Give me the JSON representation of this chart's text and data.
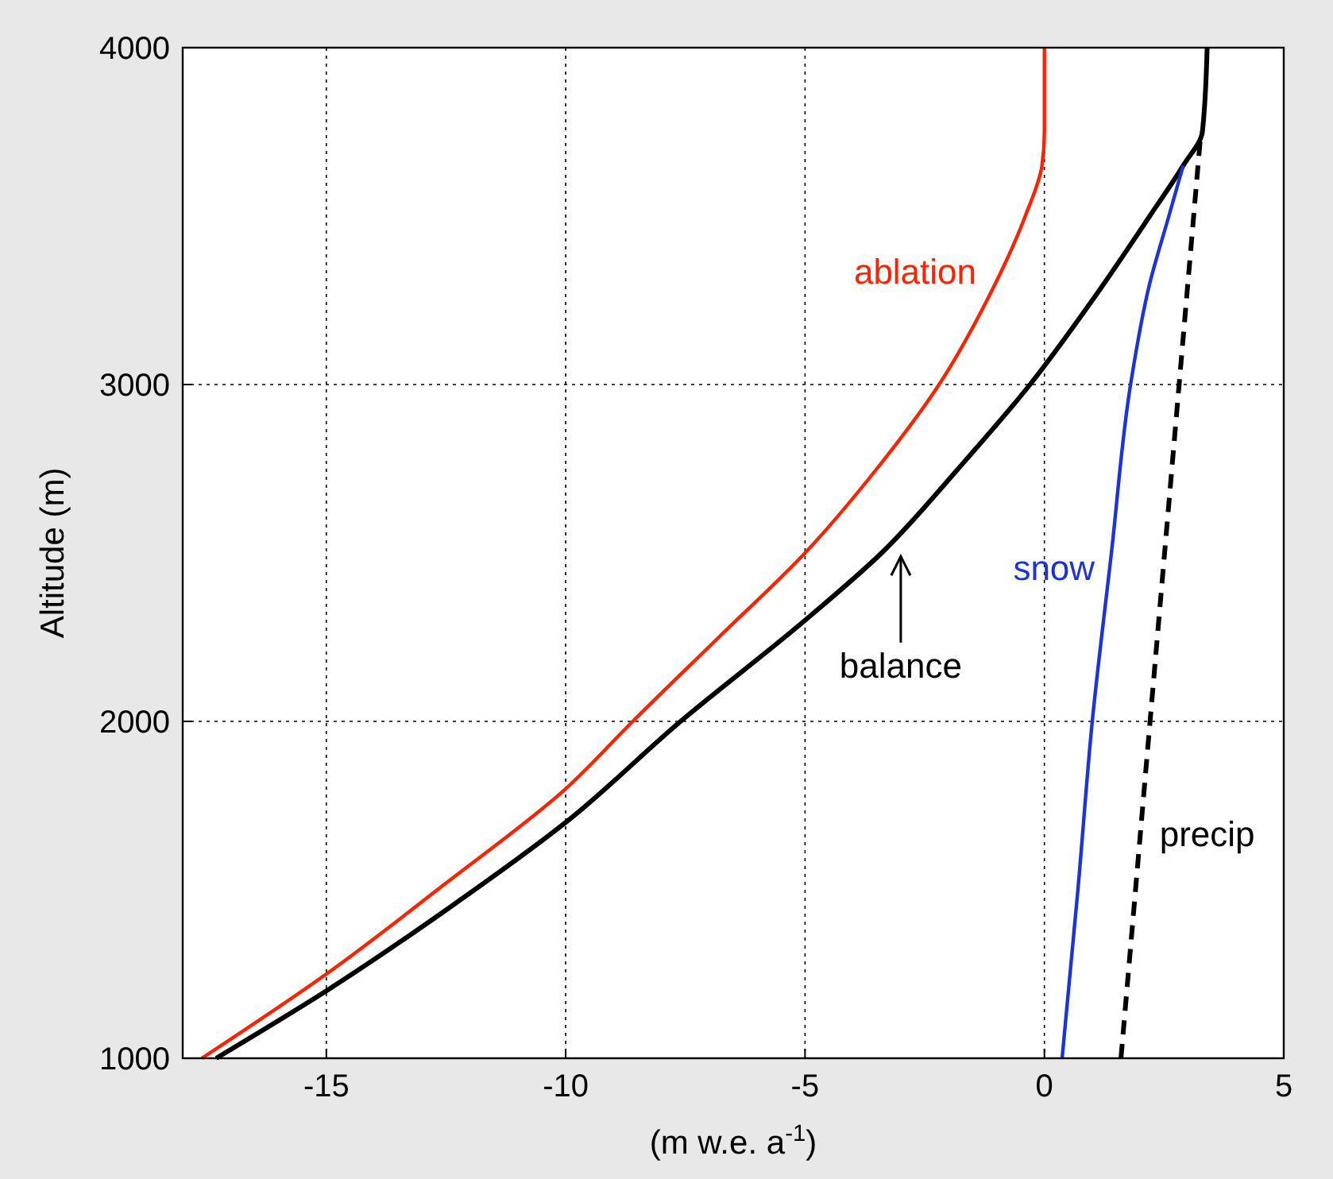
{
  "chart_data": {
    "type": "line",
    "xlabel": "(m w.e. a$^{-1}$)",
    "ylabel": "Altitude (m)",
    "xlim": [
      -18,
      5
    ],
    "xticks": [
      -15,
      -10,
      -5,
      0,
      5
    ],
    "ylim": [
      1000,
      4000
    ],
    "yticks": [
      1000,
      2000,
      3000,
      4000
    ],
    "grid": true,
    "marker": "none",
    "series": [
      {
        "name": "ablation",
        "color": "#ff2200",
        "line_style": "solid",
        "x": [
          -17.6,
          -15,
          -12.5,
          -10,
          -8.6,
          -6.8,
          -5,
          -3.5,
          -2.2,
          -1.2,
          -0.4,
          -0.05,
          0,
          0
        ],
        "values": [
          1000,
          1250,
          1520,
          1800,
          2000,
          2250,
          2500,
          2750,
          3000,
          3250,
          3500,
          3650,
          3750,
          4000
        ]
      },
      {
        "name": "balance",
        "color": "#000000",
        "line_style": "solid",
        "x": [
          -17.3,
          -15,
          -12.4,
          -10,
          -7.6,
          -5,
          -3.4,
          -1.8,
          -0.3,
          1.0,
          2.2,
          2.9,
          3.3,
          3.4
        ],
        "values": [
          1000,
          1200,
          1450,
          1700,
          2000,
          2300,
          2500,
          2750,
          3000,
          3250,
          3500,
          3650,
          3750,
          4000
        ]
      },
      {
        "name": "snow",
        "color": "#1a33dd",
        "line_style": "solid",
        "x": [
          0.37,
          0.7,
          1.0,
          1.4,
          1.8,
          2.2,
          2.6,
          2.9
        ],
        "values": [
          1000,
          1500,
          2000,
          2500,
          3000,
          3300,
          3500,
          3650
        ]
      },
      {
        "name": "precip",
        "color": "#000000",
        "line_style": "dashed",
        "x": [
          1.6,
          3.27
        ],
        "values": [
          1000,
          3750
        ]
      }
    ]
  }
}
